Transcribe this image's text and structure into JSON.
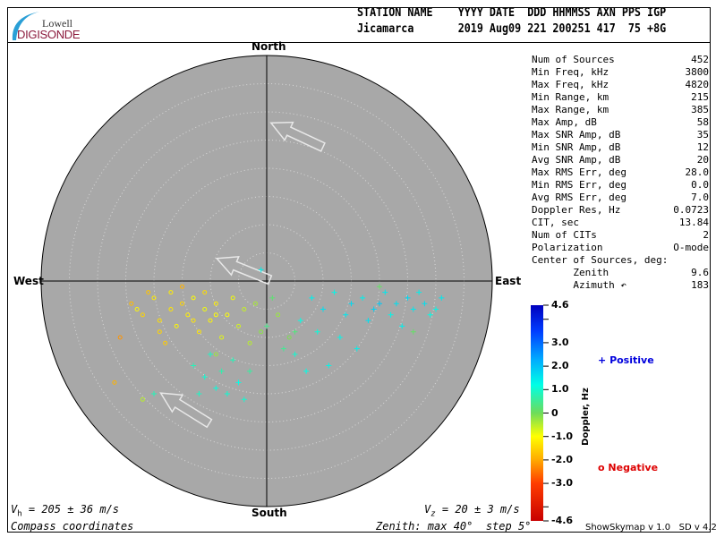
{
  "logo": {
    "line1": "Lowell",
    "line2": "DIGISONDE"
  },
  "header": {
    "labels": "STATION NAME    YYYY DATE  DDD HHMMSS AXN PPS IGP",
    "values": "Jicamarca       2019 Aug09 221 200251 417  75 +8G"
  },
  "compass": {
    "north": "North",
    "south": "South",
    "east": "East",
    "west": "West"
  },
  "stats": [
    {
      "label": "Num of Sources",
      "value": "452"
    },
    {
      "label": "Min Freq, kHz",
      "value": "3800"
    },
    {
      "label": "Max Freq, kHz",
      "value": "4820"
    },
    {
      "label": "Min Range, km",
      "value": "215"
    },
    {
      "label": "Max Range, km",
      "value": "385"
    },
    {
      "label": "Max Amp, dB",
      "value": "58"
    },
    {
      "label": "Max SNR Amp, dB",
      "value": "35"
    },
    {
      "label": "Min SNR Amp, dB",
      "value": "12"
    },
    {
      "label": "Avg SNR Amp, dB",
      "value": "20"
    },
    {
      "label": "Max RMS Err, deg",
      "value": "28.0"
    },
    {
      "label": "Min RMS Err, deg",
      "value": "0.0"
    },
    {
      "label": "Avg RMS Err, deg",
      "value": "7.0"
    },
    {
      "label": "Doppler Res, Hz",
      "value": "0.0723"
    },
    {
      "label": "CIT, sec",
      "value": "13.84"
    },
    {
      "label": "Num of CITs",
      "value": "2"
    },
    {
      "label": "Polarization",
      "value": "O-mode"
    },
    {
      "label": "Center of Sources, deg:",
      "value": ""
    },
    {
      "label": "       Zenith",
      "value": "9.6"
    },
    {
      "label": "       Azimuth ↶",
      "value": "183"
    }
  ],
  "footer": {
    "vh_sym": "V",
    "vh_sub": "h",
    "vh_rest": " = 205 ± 36 m/s",
    "vz_sym": "V",
    "vz_sub": "z",
    "vz_rest": " = 20 ± 3 m/s",
    "coords": "Compass coordinates",
    "zenith": "Zenith: max 40°  step 5°",
    "version": "ShowSkymap v 1.0   SD v 4.2"
  },
  "chart_data": {
    "type": "scatter",
    "zenith_max_deg": 40,
    "zenith_step_deg": 5,
    "point_fields": [
      "east_deg",
      "north_deg",
      "doppler_hz"
    ],
    "colorbar": {
      "label": "Doppler, Hz",
      "min": -4.6,
      "max": 4.6,
      "ticks": [
        "4.6",
        "3.0",
        "2.0",
        "1.0",
        "0",
        "-1.0",
        "-2.0",
        "-3.0",
        "-4.6"
      ],
      "tick_values": [
        4.6,
        3,
        2,
        1,
        0,
        -1,
        -2,
        -3,
        -4.6
      ]
    },
    "legend": {
      "positive": "Positive",
      "negative": "Negative",
      "positive_color": "#0000dd",
      "negative_color": "#dd0000"
    },
    "points": [
      [
        -24,
        -4,
        -1.8
      ],
      [
        -22,
        -6,
        -1.5
      ],
      [
        -20,
        -3,
        -1.2
      ],
      [
        -19,
        -7,
        -1.4
      ],
      [
        -17,
        -5,
        -1.3
      ],
      [
        -16,
        -8,
        -1.1
      ],
      [
        -15,
        -4,
        -1.5
      ],
      [
        -14,
        -6,
        -1.2
      ],
      [
        -13,
        -3,
        -1.0
      ],
      [
        -12,
        -9,
        -1.3
      ],
      [
        -11,
        -5,
        -0.9
      ],
      [
        -10,
        -7,
        -1.1
      ],
      [
        -9,
        -4,
        -1.2
      ],
      [
        -8,
        -10,
        -0.8
      ],
      [
        -7,
        -6,
        -1.0
      ],
      [
        -6,
        -3,
        -0.9
      ],
      [
        -5,
        -8,
        -0.7
      ],
      [
        -4,
        -5,
        -0.6
      ],
      [
        -3,
        -11,
        -0.5
      ],
      [
        -2,
        -4,
        -0.4
      ],
      [
        -26,
        -10,
        -2.2
      ],
      [
        -18,
        -11,
        -1.6
      ],
      [
        -21,
        -2,
        -1.7
      ],
      [
        -15,
        -1,
        -1.9
      ],
      [
        -11,
        -2,
        -1.4
      ],
      [
        -27,
        -18,
        -1.9
      ],
      [
        -23,
        -5,
        -1.1
      ],
      [
        -17,
        -2,
        -1.2
      ],
      [
        -13,
        -7,
        -1.3
      ],
      [
        -9,
        -6,
        -1.0
      ],
      [
        -19,
        -9,
        -1.5
      ],
      [
        -1,
        -9,
        -0.2
      ],
      [
        2,
        -6,
        -0.3
      ],
      [
        4,
        -10,
        -0.1
      ],
      [
        -9,
        -13,
        -0.3
      ],
      [
        -22,
        -21,
        -0.5
      ],
      [
        8,
        -3,
        1.4
      ],
      [
        10,
        -5,
        1.6
      ],
      [
        12,
        -2,
        1.3
      ],
      [
        14,
        -6,
        1.5
      ],
      [
        15,
        -4,
        1.7
      ],
      [
        17,
        -3,
        1.4
      ],
      [
        18,
        -7,
        1.6
      ],
      [
        19,
        -5,
        1.8
      ],
      [
        21,
        -2,
        1.5
      ],
      [
        22,
        -6,
        1.3
      ],
      [
        23,
        -4,
        1.6
      ],
      [
        24,
        -8,
        1.4
      ],
      [
        25,
        -3,
        1.7
      ],
      [
        26,
        -5,
        1.5
      ],
      [
        27,
        -2,
        1.4
      ],
      [
        28,
        -4,
        1.6
      ],
      [
        30,
        -5,
        1.3
      ],
      [
        31,
        -3,
        1.5
      ],
      [
        6,
        -7,
        1.2
      ],
      [
        9,
        -9,
        1.1
      ],
      [
        13,
        -10,
        1.3
      ],
      [
        16,
        -12,
        1.4
      ],
      [
        5,
        -13,
        1.0
      ],
      [
        7,
        -16,
        1.2
      ],
      [
        11,
        -15,
        1.3
      ],
      [
        20,
        -4,
        1.9
      ],
      [
        29,
        -6,
        1.2
      ],
      [
        -13,
        -15,
        0.8
      ],
      [
        -11,
        -17,
        1.0
      ],
      [
        -10,
        -13,
        0.9
      ],
      [
        -9,
        -19,
        1.1
      ],
      [
        -8,
        -16,
        0.7
      ],
      [
        -7,
        -20,
        1.0
      ],
      [
        -6,
        -14,
        0.8
      ],
      [
        -5,
        -18,
        1.2
      ],
      [
        -4,
        -21,
        1.0
      ],
      [
        -3,
        -16,
        0.6
      ],
      [
        -12,
        -20,
        0.9
      ],
      [
        -20,
        -20,
        0.8
      ],
      [
        0,
        -8,
        0.4
      ],
      [
        3,
        -12,
        0.5
      ],
      [
        5,
        -9,
        0.3
      ],
      [
        1,
        -3,
        0.2
      ],
      [
        -1,
        2,
        1.4
      ],
      [
        20,
        -1,
        0.1
      ],
      [
        26,
        -9,
        0.1
      ]
    ],
    "velocity_arrows": [
      {
        "zenith_deg": 27
      },
      {
        "zenith_deg": 4
      },
      {
        "zenith_deg": 23
      }
    ]
  }
}
